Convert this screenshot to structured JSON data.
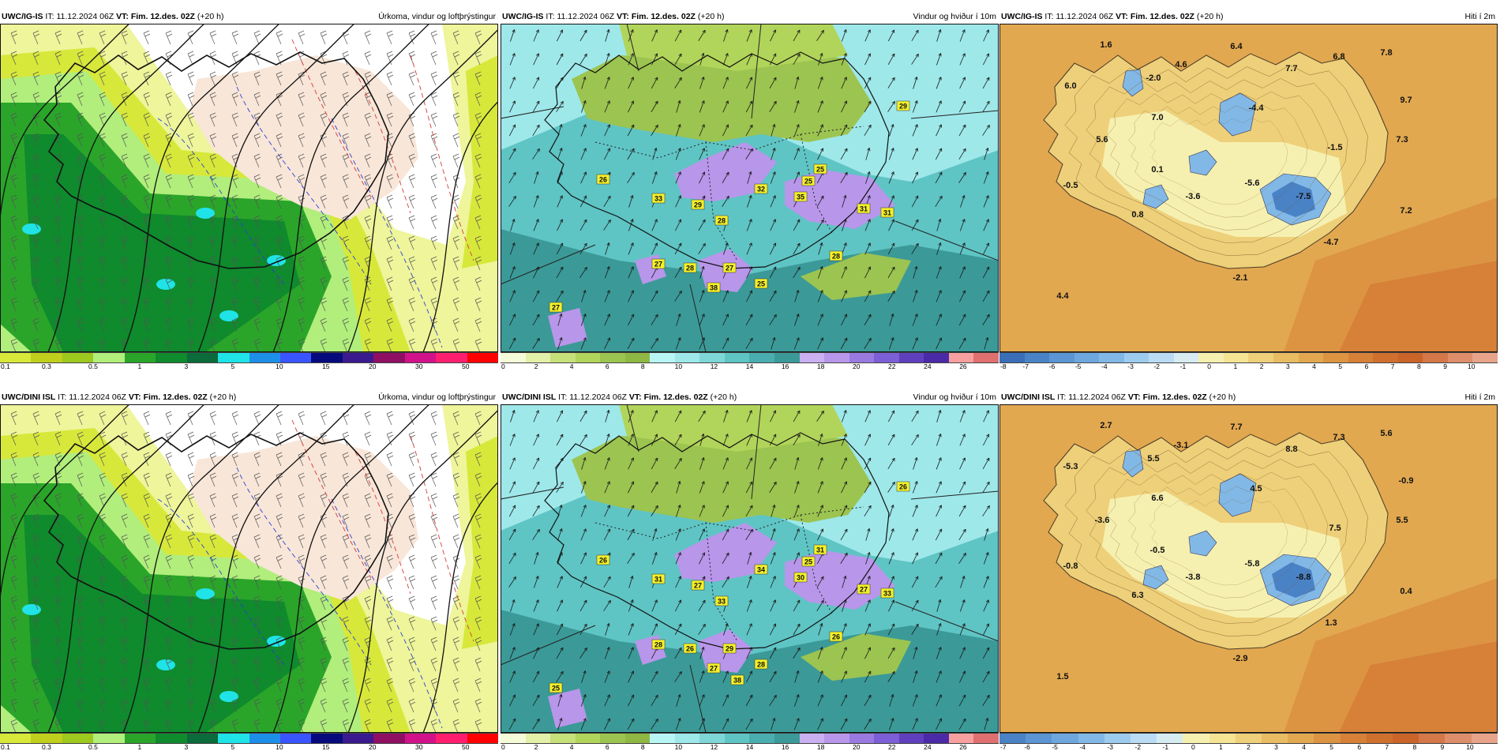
{
  "panels": [
    {
      "id": "p1",
      "row": 0,
      "col": 0,
      "kind": "precip",
      "model": "UWC/IG-IS",
      "it_label": "IT:",
      "it": "11.12.2024 06Z",
      "vt_label": "VT:",
      "vt": "Fim. 12.des. 02Z",
      "lead": "(+20 h)",
      "title": "Úrkoma, vindur og loftþrýstingur",
      "legend_colors": [
        "#d7e83a",
        "#c0cf1c",
        "#9dc81e",
        "#b1ee7c",
        "#2aa52a",
        "#0f8a2d",
        "#0b6b3a",
        "#1fe3e6",
        "#1e8fe8",
        "#3a55ff",
        "#060a7d",
        "#3a1a8e",
        "#8f0f63",
        "#d1128a",
        "#ff1f6e",
        "#ff0000"
      ],
      "legend_ticks": [
        "0.1",
        "0.3",
        "0.5",
        "1",
        "3",
        "5",
        "10",
        "15",
        "20",
        "30",
        "50"
      ],
      "labels": []
    },
    {
      "id": "p2",
      "row": 0,
      "col": 1,
      "kind": "wind",
      "model": "UWC/IG-IS",
      "it_label": "IT:",
      "it": "11.12.2024 06Z",
      "vt_label": "VT:",
      "vt": "Fim. 12.des. 02Z",
      "lead": "(+20 h)",
      "title": "Vindur og hviður í 10m",
      "legend_colors": [
        "#f5fbd8",
        "#e3f0a8",
        "#c6e07a",
        "#b1d45a",
        "#9cc450",
        "#8fb744",
        "#b8f6f6",
        "#9ee8ea",
        "#7fd6d6",
        "#5fc4c4",
        "#4aaeb0",
        "#3b9a98",
        "#cab0f0",
        "#b896ea",
        "#9a7ae0",
        "#7c5ed6",
        "#5f3fbe",
        "#4a2aa6",
        "#f8a0a0",
        "#e07070"
      ],
      "legend_ticks": [
        "0",
        "2",
        "4",
        "6",
        "8",
        "10",
        "12",
        "14",
        "16",
        "18",
        "20",
        "22",
        "24",
        "26"
      ],
      "labels": [
        "29",
        "26",
        "32",
        "25",
        "29",
        "28",
        "33",
        "35",
        "31",
        "31",
        "25",
        "28",
        "27",
        "27",
        "38",
        "25",
        "27",
        "28"
      ]
    },
    {
      "id": "p3",
      "row": 0,
      "col": 2,
      "kind": "temp",
      "model": "UWC/IG-IS",
      "it_label": "IT:",
      "it": "11.12.2024 06Z",
      "vt_label": "VT:",
      "vt": "Fim. 12.des. 02Z",
      "lead": "(+20 h)",
      "title": "Hiti í 2m",
      "legend_colors": [
        "#3a6fb8",
        "#4a82c6",
        "#5b95d3",
        "#6ea7de",
        "#82b8e6",
        "#9dcbee",
        "#b9dcf4",
        "#d6ecf0",
        "#f6f0b0",
        "#f4e494",
        "#eed07a",
        "#e8bc62",
        "#e2a850",
        "#dc9442",
        "#d68038",
        "#d0702e",
        "#ca6428",
        "#d4784a",
        "#de8e6a",
        "#e8a48a"
      ],
      "legend_ticks": [
        "-8",
        "-7",
        "-6",
        "-5",
        "-4",
        "-3",
        "-2",
        "-1",
        "0",
        "1",
        "2",
        "3",
        "4",
        "5",
        "6",
        "7",
        "8",
        "9",
        "10"
      ],
      "labels": [
        "1.6",
        "6.4",
        "7.8",
        "4.6",
        "6.8",
        "-2.0",
        "7.7",
        "6.0",
        "9.7",
        "-4.4",
        "7.0",
        "5.6",
        "-1.5",
        "7.3",
        "0.1",
        "-0.5",
        "-5.6",
        "-3.6",
        "-7.5",
        "0.8",
        "7.2",
        "-4.7",
        "4.4",
        "-2.1"
      ]
    },
    {
      "id": "p4",
      "row": 1,
      "col": 0,
      "kind": "precip",
      "model": "UWC/DINI ISL",
      "it_label": "IT:",
      "it": "11.12.2024 06Z",
      "vt_label": "VT:",
      "vt": "Fim. 12.des. 02Z",
      "lead": "(+20 h)",
      "title": "Úrkoma, vindur og loftþrýstingur",
      "legend_colors": [
        "#d7e83a",
        "#c0cf1c",
        "#9dc81e",
        "#b1ee7c",
        "#2aa52a",
        "#0f8a2d",
        "#0b6b3a",
        "#1fe3e6",
        "#1e8fe8",
        "#3a55ff",
        "#060a7d",
        "#3a1a8e",
        "#8f0f63",
        "#d1128a",
        "#ff1f6e",
        "#ff0000"
      ],
      "legend_ticks": [
        "0.1",
        "0.3",
        "0.5",
        "1",
        "3",
        "5",
        "10",
        "15",
        "20",
        "30",
        "50"
      ],
      "labels": []
    },
    {
      "id": "p5",
      "row": 1,
      "col": 1,
      "kind": "wind",
      "model": "UWC/DINI ISL",
      "it_label": "IT:",
      "it": "11.12.2024 06Z",
      "vt_label": "VT:",
      "vt": "Fim. 12.des. 02Z",
      "lead": "(+20 h)",
      "title": "Vindur og hviður í 10m",
      "legend_colors": [
        "#f5fbd8",
        "#e3f0a8",
        "#c6e07a",
        "#b1d45a",
        "#9cc450",
        "#8fb744",
        "#b8f6f6",
        "#9ee8ea",
        "#7fd6d6",
        "#5fc4c4",
        "#4aaeb0",
        "#3b9a98",
        "#cab0f0",
        "#b896ea",
        "#9a7ae0",
        "#7c5ed6",
        "#5f3fbe",
        "#4a2aa6",
        "#f8a0a0",
        "#e07070"
      ],
      "legend_ticks": [
        "0",
        "2",
        "4",
        "6",
        "8",
        "10",
        "12",
        "14",
        "16",
        "18",
        "20",
        "22",
        "24",
        "26"
      ],
      "labels": [
        "26",
        "26",
        "34",
        "25",
        "27",
        "33",
        "31",
        "30",
        "33",
        "27",
        "31",
        "26",
        "28",
        "29",
        "27",
        "28",
        "25",
        "26",
        "38"
      ]
    },
    {
      "id": "p6",
      "row": 1,
      "col": 2,
      "kind": "temp",
      "model": "UWC/DINI ISL",
      "it_label": "IT:",
      "it": "11.12.2024 06Z",
      "vt_label": "VT:",
      "vt": "Fim. 12.des. 02Z",
      "lead": "(+20 h)",
      "title": "Hiti í 2m",
      "legend_colors": [
        "#4a82c6",
        "#5b95d3",
        "#6ea7de",
        "#82b8e6",
        "#9dcbee",
        "#b9dcf4",
        "#d6ecf0",
        "#f6f0b0",
        "#f4e494",
        "#eed07a",
        "#e8bc62",
        "#e2a850",
        "#dc9442",
        "#d68038",
        "#d0702e",
        "#ca6428",
        "#d4784a",
        "#de8e6a",
        "#e8a48a"
      ],
      "legend_ticks": [
        "-7",
        "-6",
        "-5",
        "-4",
        "-3",
        "-2",
        "-1",
        "0",
        "1",
        "2",
        "3",
        "4",
        "5",
        "6",
        "7",
        "8",
        "9",
        "10"
      ],
      "labels": [
        "2.7",
        "7.7",
        "5.6",
        "-3.1",
        "7.3",
        "5.5",
        "8.8",
        "-5.3",
        "-0.9",
        "4.5",
        "6.6",
        "-3.6",
        "7.5",
        "5.5",
        "-0.5",
        "-0.8",
        "-5.8",
        "-3.8",
        "-8.8",
        "6.3",
        "0.4",
        "1.3",
        "1.5",
        "-2.9"
      ]
    }
  ]
}
